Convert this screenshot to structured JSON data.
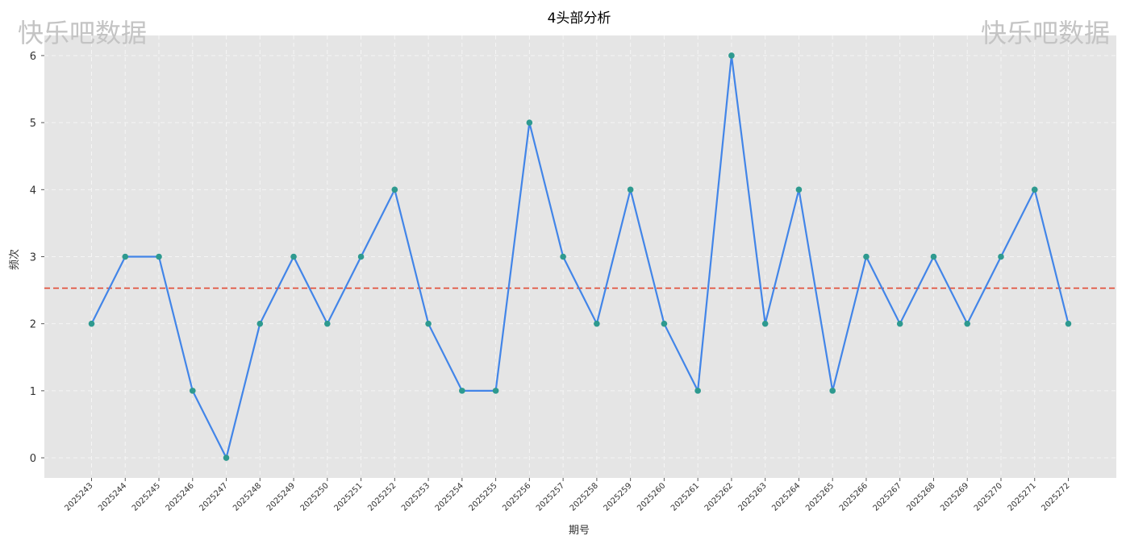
{
  "watermark_text": "快乐吧数据",
  "chart_data": {
    "type": "line",
    "title": "4头部分析",
    "xlabel": "期号",
    "ylabel": "频次",
    "categories": [
      "2025243",
      "2025244",
      "2025245",
      "2025246",
      "2025247",
      "2025248",
      "2025249",
      "2025250",
      "2025251",
      "2025252",
      "2025253",
      "2025254",
      "2025255",
      "2025256",
      "2025257",
      "2025258",
      "2025259",
      "2025260",
      "2025261",
      "2025262",
      "2025263",
      "2025264",
      "2025265",
      "2025266",
      "2025267",
      "2025268",
      "2025269",
      "2025270",
      "2025271",
      "2025272"
    ],
    "values": [
      2,
      3,
      3,
      1,
      0,
      2,
      3,
      2,
      3,
      4,
      2,
      1,
      1,
      5,
      3,
      2,
      4,
      2,
      1,
      6,
      2,
      4,
      1,
      3,
      2,
      3,
      2,
      3,
      4,
      2
    ],
    "mean_line": 2.53,
    "yticks": [
      0,
      1,
      2,
      3,
      4,
      5,
      6
    ],
    "ylim": [
      -0.3,
      6.3
    ],
    "grid": true,
    "colors": {
      "background": "#e5e5e5",
      "line": "#4285e8",
      "marker": "#2e9a8f",
      "mean_line": "#e24a33",
      "grid": "#f5f5f5",
      "text": "#333333"
    }
  }
}
